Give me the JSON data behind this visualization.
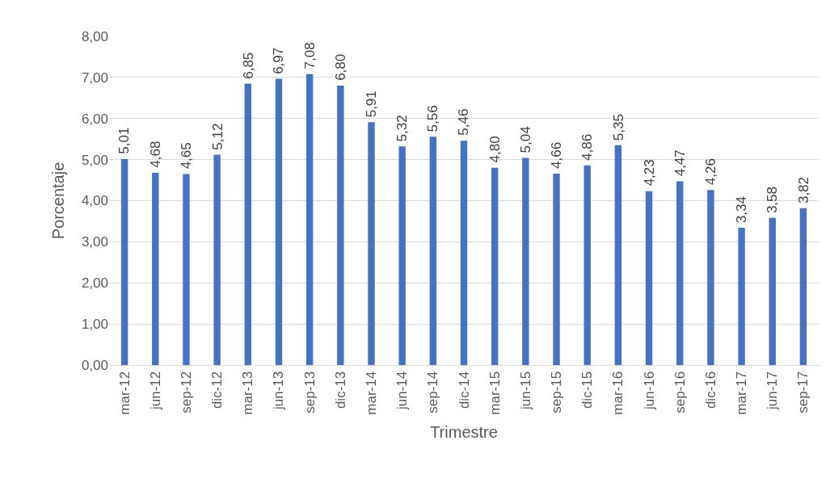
{
  "chart_data": {
    "type": "bar",
    "xlabel": "Trimestre",
    "ylabel": "Porcentaje",
    "categories": [
      "mar-12",
      "jun-12",
      "sep-12",
      "dic-12",
      "mar-13",
      "jun-13",
      "sep-13",
      "dic-13",
      "mar-14",
      "jun-14",
      "sep-14",
      "dic-14",
      "mar-15",
      "jun-15",
      "sep-15",
      "dic-15",
      "mar-16",
      "jun-16",
      "sep-16",
      "dic-16",
      "mar-17",
      "jun-17",
      "sep-17"
    ],
    "values": [
      5.01,
      4.68,
      4.65,
      5.12,
      6.85,
      6.97,
      7.08,
      6.8,
      5.91,
      5.32,
      5.56,
      5.46,
      4.8,
      5.04,
      4.66,
      4.86,
      5.35,
      4.23,
      4.47,
      4.26,
      3.34,
      3.58,
      3.82
    ],
    "value_labels": [
      "5,01",
      "4,68",
      "4,65",
      "5,12",
      "6,85",
      "6,97",
      "7,08",
      "6,80",
      "5,91",
      "5,32",
      "5,56",
      "5,46",
      "4,80",
      "5,04",
      "4,66",
      "4,86",
      "5,35",
      "4,23",
      "4,47",
      "4,26",
      "3,34",
      "3,58",
      "3,82"
    ],
    "color": "#4472c4",
    "ylim": [
      0,
      8
    ],
    "yticks": [
      {
        "value": 0,
        "label": "0,00"
      },
      {
        "value": 1,
        "label": "1,00"
      },
      {
        "value": 2,
        "label": "2,00"
      },
      {
        "value": 3,
        "label": "3,00"
      },
      {
        "value": 4,
        "label": "4,00"
      },
      {
        "value": 5,
        "label": "5,00"
      },
      {
        "value": 6,
        "label": "6,00"
      },
      {
        "value": 7,
        "label": "7,00"
      },
      {
        "value": 8,
        "label": "8,00"
      }
    ],
    "grid": "y"
  }
}
